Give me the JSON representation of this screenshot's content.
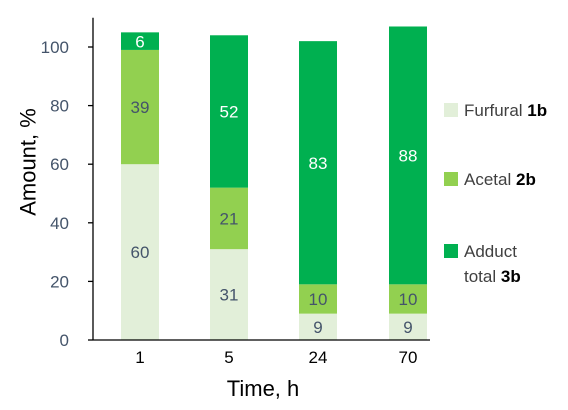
{
  "chart_data": {
    "type": "bar",
    "stacked": true,
    "title": "",
    "xlabel": "Time, h",
    "ylabel": "Amount, %",
    "categories": [
      "1",
      "5",
      "24",
      "70"
    ],
    "ylim": [
      0,
      110
    ],
    "yticks": [
      0,
      20,
      40,
      60,
      80,
      100
    ],
    "grid": false,
    "legend_position": "right",
    "series": [
      {
        "name_parts": [
          "Furfural ",
          "1b"
        ],
        "values": [
          60,
          31,
          9,
          9
        ],
        "labels": [
          "60",
          "31",
          "9",
          "9"
        ],
        "color": "#e2efd9",
        "label_color": "#44546a"
      },
      {
        "name_parts": [
          "Acetal ",
          "2b"
        ],
        "values": [
          39,
          21,
          10,
          10
        ],
        "labels": [
          "39",
          "21",
          "10",
          "10"
        ],
        "color": "#92d050",
        "label_color": "#44546a"
      },
      {
        "name_lines": [
          "Adduct",
          "total "
        ],
        "name_bold": "3b",
        "values": [
          6,
          52,
          83,
          88
        ],
        "labels": [
          "6",
          "52",
          "83",
          "88"
        ],
        "color": "#00b050",
        "label_color": "#ffffff"
      }
    ]
  }
}
